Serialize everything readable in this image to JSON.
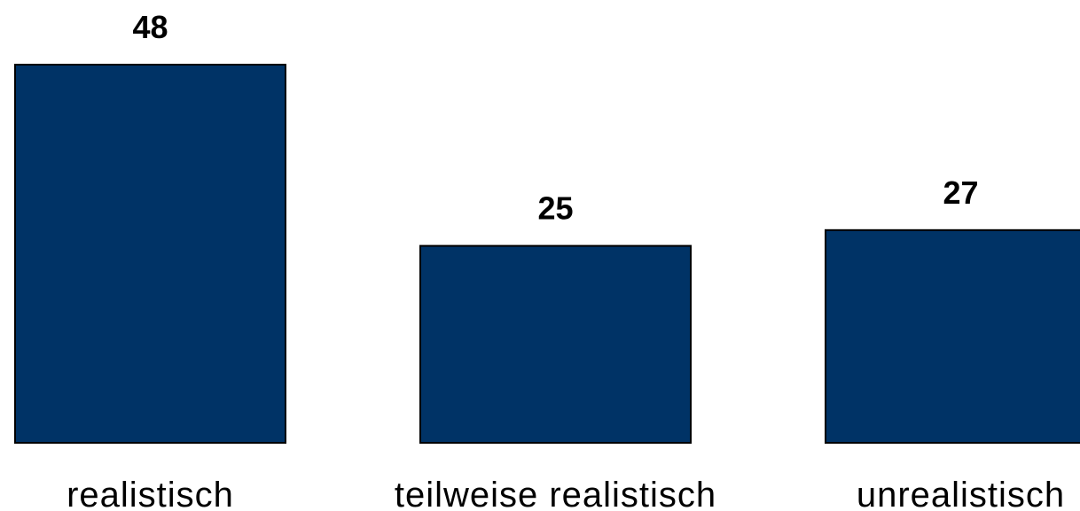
{
  "chart_data": {
    "type": "bar",
    "categories": [
      "realistisch",
      "teilweise realistisch",
      "unrealistisch"
    ],
    "values": [
      48,
      25,
      27
    ],
    "data_labels": [
      "48",
      "25",
      "27"
    ],
    "title": "",
    "xlabel": "",
    "ylabel": "",
    "ylim": [
      0,
      48
    ],
    "grid": false,
    "legend": "none",
    "bar_color": "#003366",
    "edge_color": "#000000"
  }
}
